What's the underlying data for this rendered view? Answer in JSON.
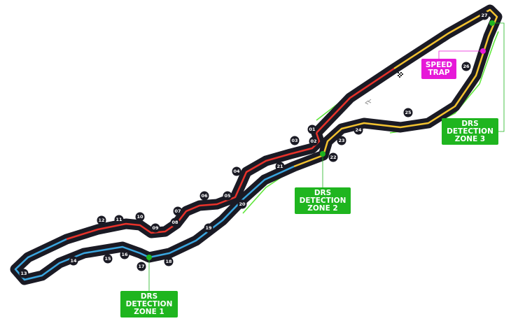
{
  "colors": {
    "track": "#1a1a24",
    "sector1": "#e8322a",
    "sector2": "#3aa6e0",
    "sector3": "#f2c230",
    "drs_zone": "#5fe63a",
    "drs_box": "#1fb51f",
    "speed_trap": "#e619d8"
  },
  "turns": [
    "01",
    "02",
    "03",
    "04",
    "05",
    "06",
    "07",
    "08",
    "09",
    "10",
    "11",
    "12",
    "13",
    "14",
    "15",
    "16",
    "17",
    "18",
    "19",
    "20",
    "21",
    "22",
    "23",
    "24",
    "25",
    "26",
    "27"
  ],
  "labels": {
    "drs1": [
      "DRS",
      "DETECTION",
      "ZONE 1"
    ],
    "drs2": [
      "DRS",
      "DETECTION",
      "ZONE 2"
    ],
    "drs3": [
      "DRS",
      "DETECTION",
      "ZONE 3"
    ],
    "speed_trap": [
      "SPEED",
      "TRAP"
    ]
  },
  "icons": [
    "chequered-flag-icon",
    "direction-chevrons-icon"
  ]
}
